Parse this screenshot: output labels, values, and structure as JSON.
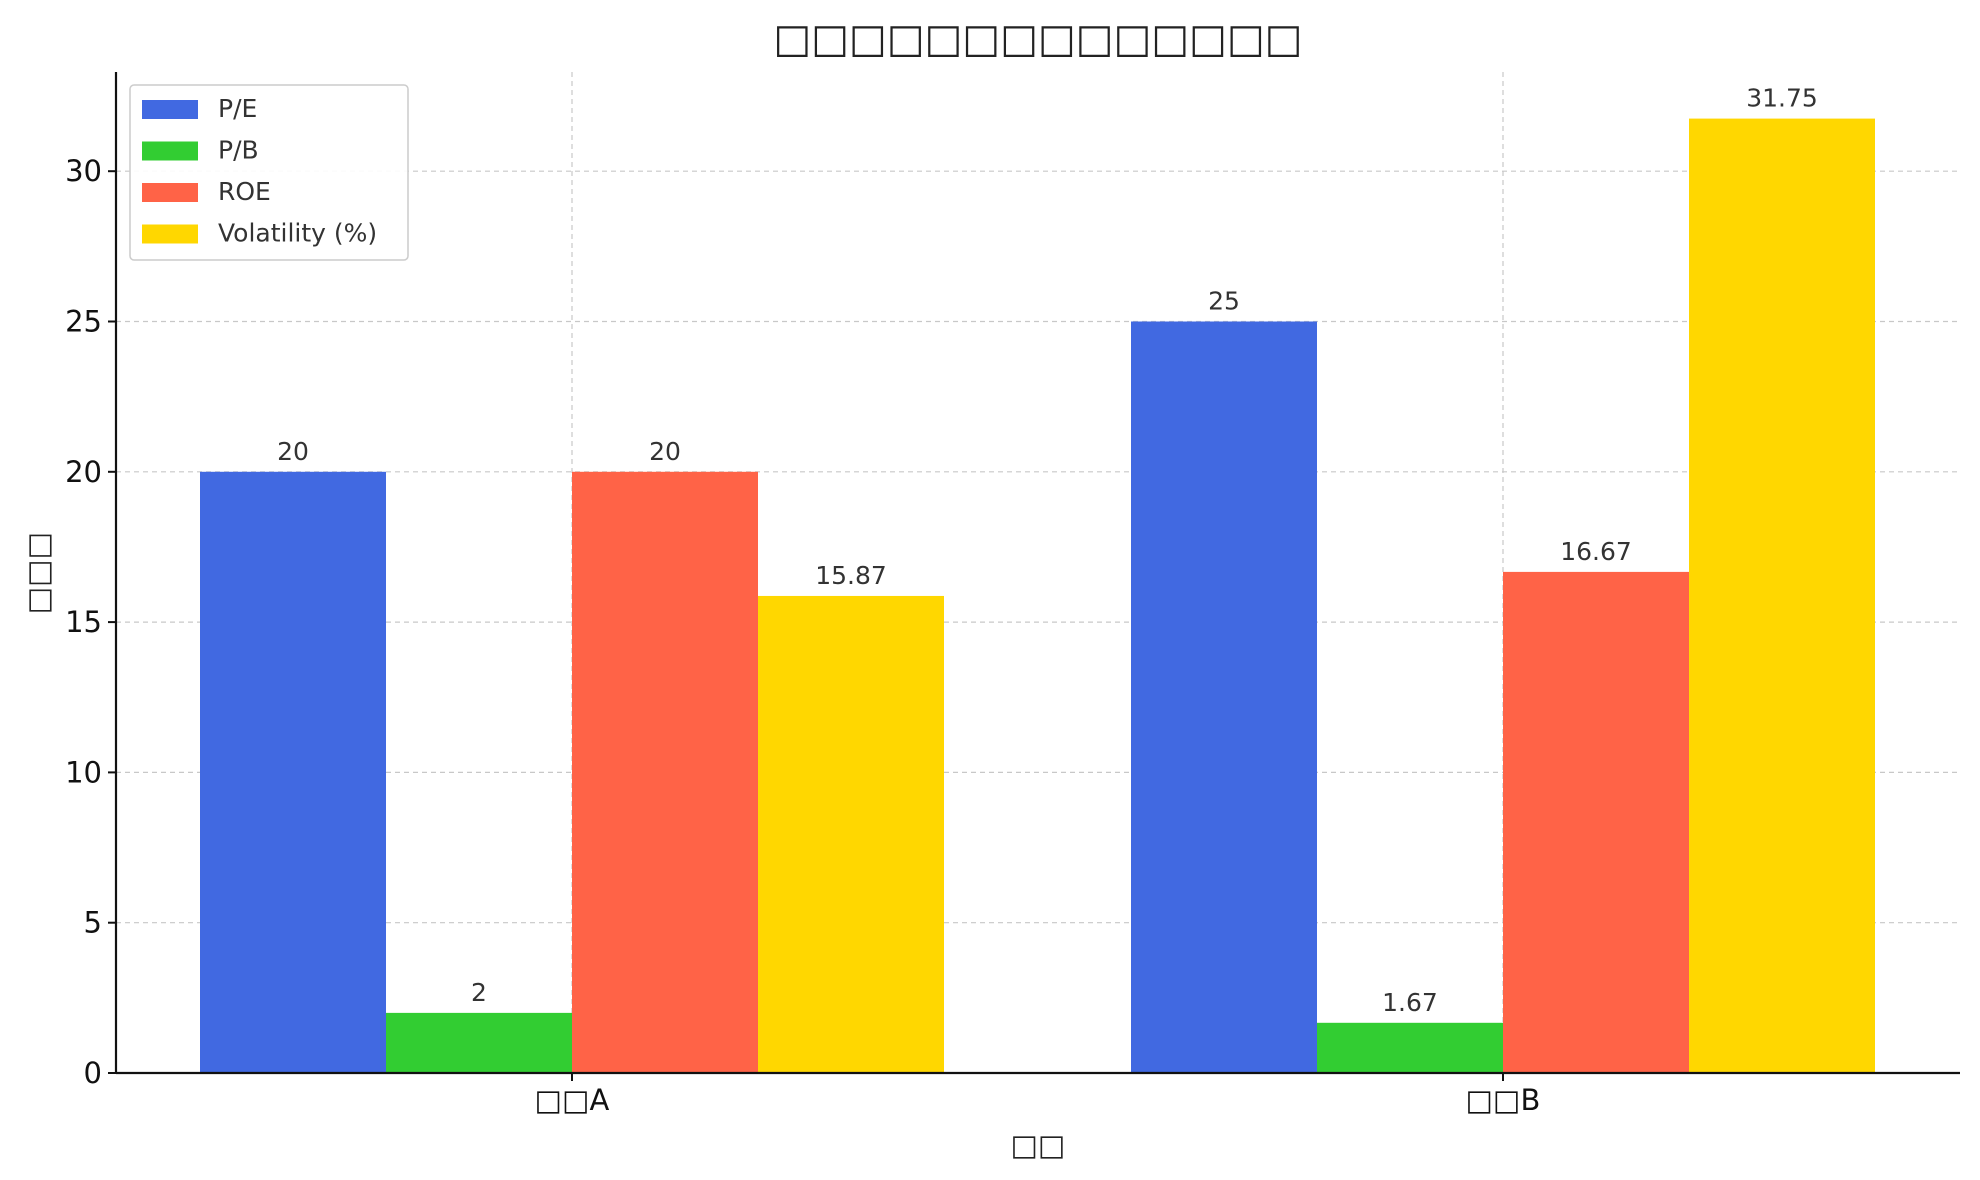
{
  "chart_data": {
    "type": "bar",
    "title": "□□□□□□□□□□□□□□",
    "xlabel": "□□",
    "ylabel": "□□□",
    "categories": [
      "□□A",
      "□□B"
    ],
    "series": [
      {
        "name": "P/E",
        "color": "#4169E1",
        "values": [
          20,
          25
        ],
        "labels": [
          "20",
          "25"
        ]
      },
      {
        "name": "P/B",
        "color": "#32CD32",
        "values": [
          2,
          1.67
        ],
        "labels": [
          "2",
          "1.67"
        ]
      },
      {
        "name": "ROE",
        "color": "#FF6347",
        "values": [
          20,
          16.67
        ],
        "labels": [
          "20",
          "16.67"
        ]
      },
      {
        "name": "Volatility (%)",
        "color": "#FFD700",
        "values": [
          15.87,
          31.75
        ],
        "labels": [
          "15.87",
          "31.75"
        ]
      }
    ],
    "yticks": [
      0,
      5,
      10,
      15,
      20,
      25,
      30
    ],
    "ylim": [
      0,
      33.3
    ],
    "grid": true,
    "legend_position": "upper-left"
  }
}
